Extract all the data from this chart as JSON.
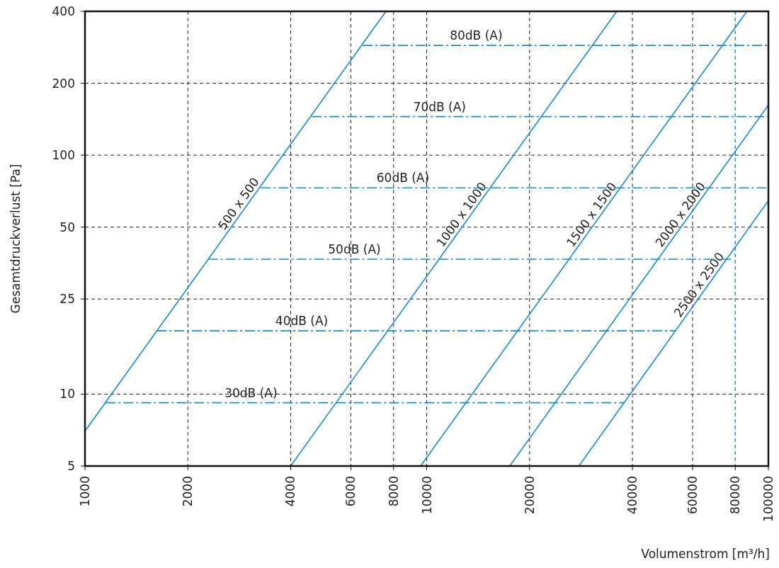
{
  "chart_data": {
    "type": "line",
    "xlabel": "Volumenstrom [m³/h]",
    "ylabel": "Gesamtdruckverlust [Pa]",
    "log": "xy",
    "xlim": [
      1000,
      100000
    ],
    "ylim": [
      5,
      400
    ],
    "xticks": [
      1000,
      2000,
      4000,
      6000,
      8000,
      10000,
      20000,
      40000,
      60000,
      80000,
      100000
    ],
    "yticks": [
      5,
      10,
      25,
      50,
      100,
      200,
      400
    ],
    "grid": true,
    "marker": "none",
    "ref_lines": [
      {
        "axis": "x",
        "value": 80000,
        "color": "#1a8ac8",
        "line_style": "dashed"
      }
    ],
    "series": [
      {
        "name": "500 x 500",
        "color": "#1a8ac8",
        "line_style": "solid",
        "x": [
          1000,
          7600
        ],
        "values": [
          7,
          400
        ]
      },
      {
        "name": "1000 x 1000",
        "color": "#1a8ac8",
        "line_style": "solid",
        "x": [
          4000,
          36000
        ],
        "values": [
          5,
          400
        ]
      },
      {
        "name": "1500 x 1500",
        "color": "#1a8ac8",
        "line_style": "solid",
        "x": [
          9600,
          86500
        ],
        "values": [
          5,
          400
        ]
      },
      {
        "name": "2000 x 2000",
        "color": "#1a8ac8",
        "line_style": "solid",
        "x": [
          17500,
          100000
        ],
        "values": [
          5,
          162
        ]
      },
      {
        "name": "2500 x 2500",
        "color": "#1a8ac8",
        "line_style": "solid",
        "x": [
          27900,
          100000
        ],
        "values": [
          5,
          64.5
        ]
      },
      {
        "name": "30dB (A)",
        "color": "#1a8ac8",
        "line_style": "dashed",
        "x": [
          1150,
          37900
        ],
        "values": [
          9.2,
          9.2
        ]
      },
      {
        "name": "40dB (A)",
        "color": "#1a8ac8",
        "line_style": "dashed",
        "x": [
          1620,
          53300
        ],
        "values": [
          18.4,
          18.4
        ]
      },
      {
        "name": "50dB (A)",
        "color": "#1a8ac8",
        "line_style": "dashed",
        "x": [
          2290,
          77800
        ],
        "values": [
          36.7,
          36.7
        ]
      },
      {
        "name": "60dB (A)",
        "color": "#1a8ac8",
        "line_style": "dashed",
        "x": [
          3270,
          100000
        ],
        "values": [
          73,
          73
        ]
      },
      {
        "name": "70dB (A)",
        "color": "#1a8ac8",
        "line_style": "dashed",
        "x": [
          4610,
          100000
        ],
        "values": [
          145,
          145
        ]
      },
      {
        "name": "80dB (A)",
        "color": "#1a8ac8",
        "line_style": "dashed",
        "x": [
          6490,
          100000
        ],
        "values": [
          288,
          288
        ]
      }
    ]
  }
}
